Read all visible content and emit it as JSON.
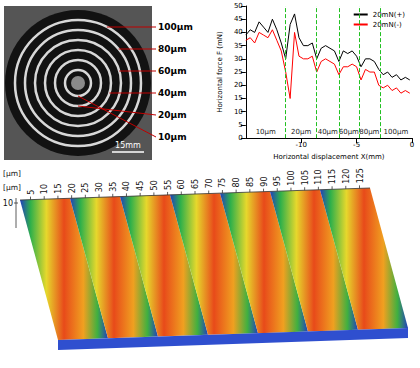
{
  "photo": {
    "ring_labels": [
      "100μm",
      "80μm",
      "60μm",
      "40μm",
      "20μm",
      "10μm"
    ],
    "scale_bar": "15mm"
  },
  "chart_data": {
    "type": "line",
    "xlabel": "Horizontal displacement X(mm)",
    "ylabel": "Horizontal force F (mN)",
    "x": [
      -15,
      -14.6,
      -14.2,
      -13.8,
      -13.4,
      -13,
      -12.6,
      -12.2,
      -11.8,
      -11.4,
      -11,
      -10.6,
      -10.2,
      -9.8,
      -9.4,
      -9,
      -8.6,
      -8.2,
      -7.8,
      -7.4,
      -7,
      -6.6,
      -6.2,
      -5.8,
      -5.4,
      -5,
      -4.6,
      -4.2,
      -3.8,
      -3.4,
      -3,
      -2.6,
      -2.2,
      -1.8,
      -1.4,
      -1,
      -0.6,
      -0.2
    ],
    "series": [
      {
        "name": "20mN(+)",
        "color": "#000000",
        "values": [
          39,
          41,
          40,
          44,
          42,
          40,
          45,
          41,
          36,
          30,
          43,
          47,
          38,
          35,
          35,
          36,
          30,
          34,
          35,
          34,
          33,
          29,
          33,
          32,
          33,
          31,
          27,
          30,
          30,
          29,
          26,
          24,
          25,
          23,
          24,
          22,
          23,
          22
        ]
      },
      {
        "name": "20mN(-)",
        "color": "#ff0000",
        "values": [
          37,
          38,
          36,
          40,
          39,
          38,
          41,
          37,
          33,
          25,
          15,
          40,
          31,
          30,
          30,
          31,
          25,
          29,
          30,
          29,
          28,
          24,
          27,
          27,
          28,
          27,
          22,
          26,
          25,
          25,
          20,
          19,
          20,
          18,
          19,
          17,
          18,
          17
        ]
      }
    ],
    "xlim": [
      -15,
      0
    ],
    "xticks": [
      -10,
      -5,
      0
    ],
    "ylim": [
      0,
      50
    ],
    "yticks": [
      0,
      5,
      10,
      15,
      20,
      25,
      30,
      35,
      40,
      45,
      50
    ],
    "grid": false,
    "legend": "upper right",
    "regions": [
      {
        "label": "10μm",
        "from": -15,
        "to": -11.4
      },
      {
        "label": "20μm",
        "from": -11.4,
        "to": -8.6
      },
      {
        "label": "40μm",
        "from": -8.6,
        "to": -6.6
      },
      {
        "label": "60μm",
        "from": -6.6,
        "to": -4.8
      },
      {
        "label": "80μm",
        "from": -4.8,
        "to": -2.9
      },
      {
        "label": "100μm",
        "from": -2.9,
        "to": 0
      }
    ]
  },
  "surface": {
    "x_unit": "[μm]",
    "x_ticks": [
      5,
      10,
      15,
      20,
      25,
      30,
      35,
      40,
      45,
      50,
      55,
      60,
      65,
      70,
      75,
      80,
      85,
      90,
      95,
      100,
      105,
      110,
      115,
      120,
      125
    ],
    "z_unit": "[μm]",
    "z_ticks": [
      10
    ]
  }
}
